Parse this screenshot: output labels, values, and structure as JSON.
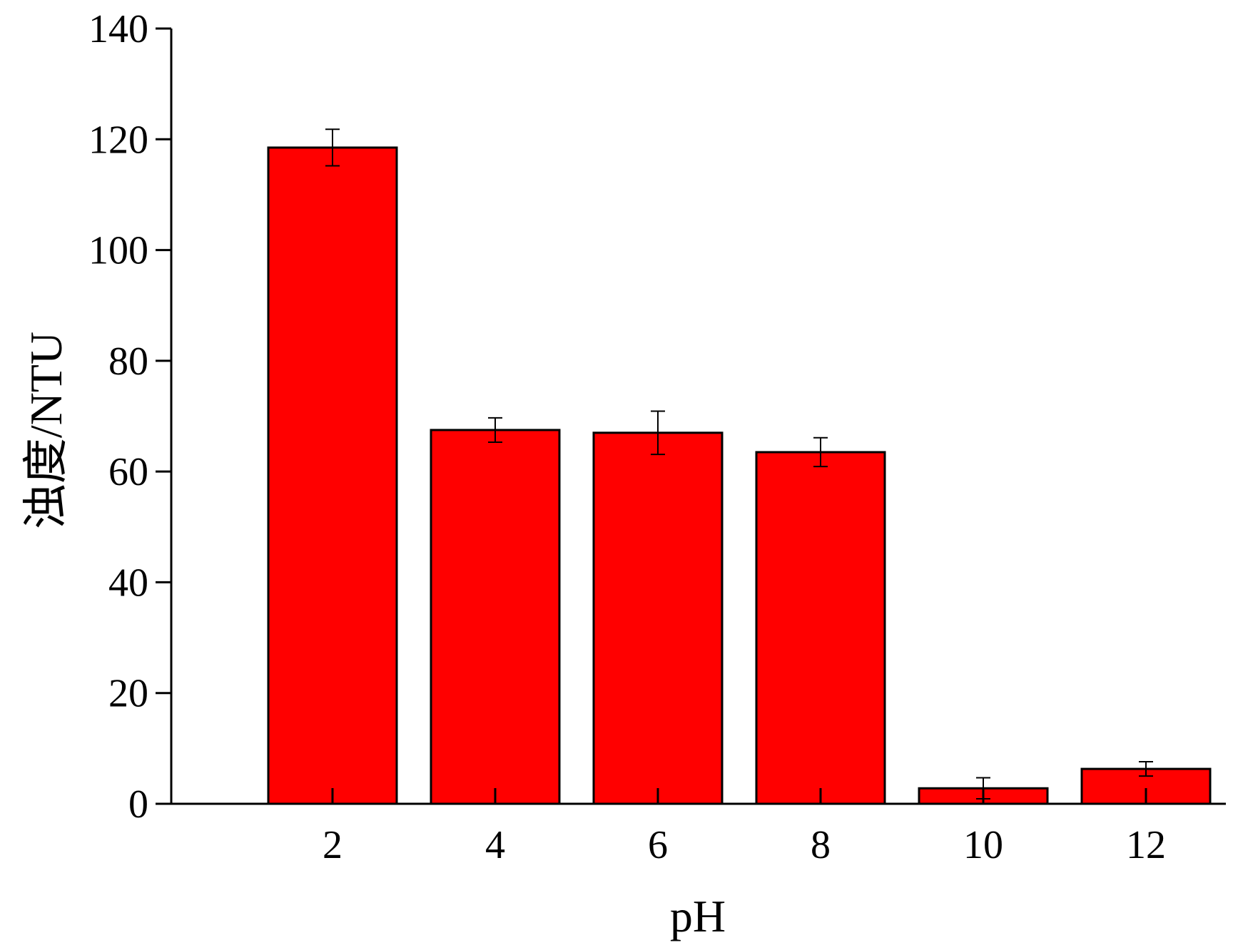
{
  "chart_data": {
    "type": "bar",
    "title": "",
    "xlabel": "pH",
    "ylabel": "浊度/NTU",
    "categories": [
      "2",
      "4",
      "6",
      "8",
      "10",
      "12"
    ],
    "values": [
      118.5,
      67.5,
      67.0,
      63.5,
      2.8,
      6.3
    ],
    "errors": [
      3.3,
      2.2,
      3.9,
      2.6,
      1.9,
      1.3
    ],
    "ylim": [
      0,
      140
    ],
    "yticks": [
      "0",
      "20",
      "40",
      "60",
      "80",
      "100",
      "120",
      "140"
    ],
    "grid": false,
    "legend": "none",
    "bar_color": "#ff0000",
    "bar_edge_color": "#000000",
    "axis_color": "#000000"
  }
}
